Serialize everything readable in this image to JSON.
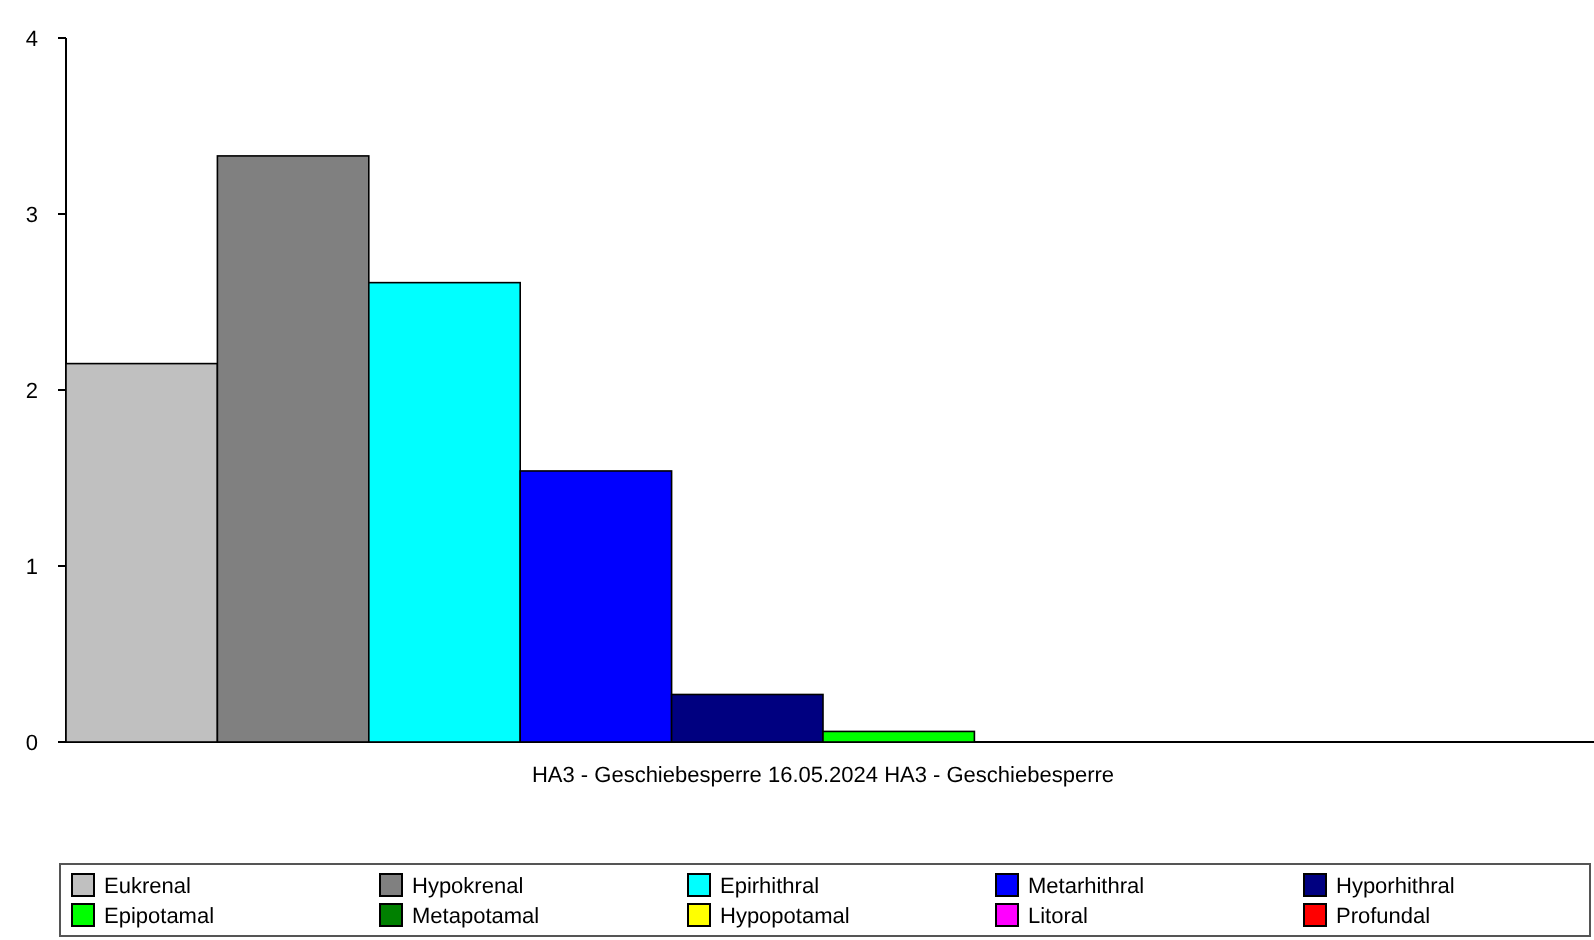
{
  "chart_data": {
    "type": "bar",
    "categories": [
      "HA3 - Geschiebesperre 16.05.2024 HA3 - Geschiebesperre"
    ],
    "series": [
      {
        "name": "Eukrenal",
        "color": "#c0c0c0",
        "values": [
          2.15
        ]
      },
      {
        "name": "Hypokrenal",
        "color": "#808080",
        "values": [
          3.33
        ]
      },
      {
        "name": "Epirhithral",
        "color": "#00ffff",
        "values": [
          2.61
        ]
      },
      {
        "name": "Metarhithral",
        "color": "#0000ff",
        "values": [
          1.54
        ]
      },
      {
        "name": "Hyporhithral",
        "color": "#000080",
        "values": [
          0.27
        ]
      },
      {
        "name": "Epipotamal",
        "color": "#00ff00",
        "values": [
          0.06
        ]
      },
      {
        "name": "Metapotamal",
        "color": "#008000",
        "values": [
          0
        ]
      },
      {
        "name": "Hypopotamal",
        "color": "#ffff00",
        "values": [
          0
        ]
      },
      {
        "name": "Litoral",
        "color": "#ff00ff",
        "values": [
          0
        ]
      },
      {
        "name": "Profundal",
        "color": "#ff0000",
        "values": [
          0
        ]
      }
    ],
    "ylim": [
      0,
      4
    ],
    "yticks": [
      0,
      1,
      2,
      3,
      4
    ],
    "grid": false,
    "legend": "bottom"
  }
}
